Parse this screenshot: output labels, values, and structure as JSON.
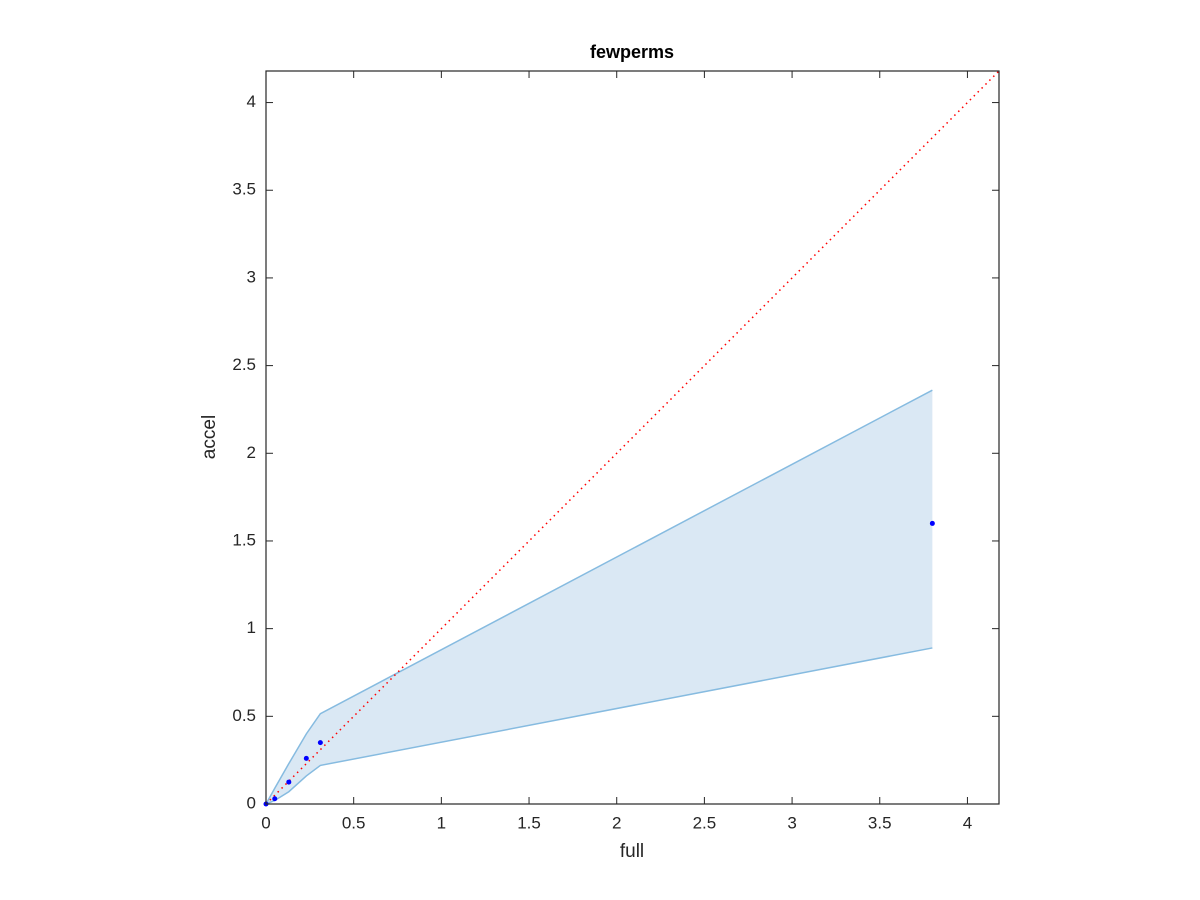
{
  "chart_data": {
    "type": "scatter",
    "title": "fewperms",
    "x_label": "full",
    "y_label": "accel",
    "x": [
      0,
      0.05,
      0.13,
      0.23,
      0.31,
      3.8
    ],
    "values": [
      0,
      0.03,
      0.125,
      0.26,
      0.35,
      1.6
    ],
    "color": "#0000ff",
    "band": {
      "x": [
        0,
        0.05,
        0.13,
        0.23,
        0.31,
        3.8
      ],
      "upper": [
        0,
        0.09,
        0.23,
        0.4,
        0.515,
        2.36
      ],
      "lower": [
        0,
        0.02,
        0.07,
        0.16,
        0.22,
        0.89
      ],
      "fill": "#dae8f4",
      "edge": "#86bbe0"
    },
    "reference_line": {
      "x": [
        0,
        4.18
      ],
      "values": [
        0,
        4.18
      ],
      "color": "#ff0000"
    },
    "xlim": [
      0,
      4.18
    ],
    "ylim": [
      0,
      4.18
    ],
    "xticks": [
      0,
      0.5,
      1,
      1.5,
      2,
      2.5,
      3,
      3.5,
      4
    ],
    "yticks": [
      0,
      0.5,
      1,
      1.5,
      2,
      2.5,
      3,
      3.5,
      4
    ]
  }
}
